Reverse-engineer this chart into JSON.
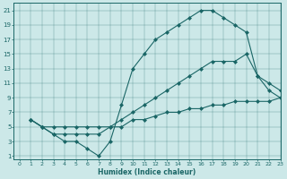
{
  "xlabel": "Humidex (Indice chaleur)",
  "bg_color": "#cce8e8",
  "line_color": "#1a6666",
  "xlim": [
    -0.5,
    23
  ],
  "ylim": [
    0.5,
    22
  ],
  "xticks": [
    0,
    1,
    2,
    3,
    4,
    5,
    6,
    7,
    8,
    9,
    10,
    11,
    12,
    13,
    14,
    15,
    16,
    17,
    18,
    19,
    20,
    21,
    22,
    23
  ],
  "yticks": [
    1,
    3,
    5,
    7,
    9,
    11,
    13,
    15,
    17,
    19,
    21
  ],
  "line1_x": [
    1,
    2,
    3,
    4,
    5,
    6,
    7,
    8,
    9,
    10,
    11,
    12,
    13,
    14,
    15,
    16,
    17,
    18,
    19,
    20,
    21,
    22,
    23
  ],
  "line1_y": [
    6,
    5,
    4,
    3,
    3,
    2,
    1,
    3,
    8,
    13,
    15,
    17,
    18,
    19,
    20,
    21,
    21,
    20,
    19,
    18,
    12,
    10,
    9
  ],
  "line2_x": [
    1,
    2,
    3,
    4,
    5,
    6,
    7,
    8,
    9,
    10,
    11,
    12,
    13,
    14,
    15,
    16,
    17,
    18,
    19,
    20,
    21,
    22,
    23
  ],
  "line2_y": [
    6,
    5,
    4,
    4,
    4,
    4,
    4,
    5,
    6,
    7,
    8,
    9,
    10,
    11,
    12,
    13,
    14,
    14,
    14,
    15,
    12,
    11,
    10
  ],
  "line3_x": [
    1,
    2,
    3,
    4,
    5,
    6,
    7,
    8,
    9,
    10,
    11,
    12,
    13,
    14,
    15,
    16,
    17,
    18,
    19,
    20,
    21,
    22,
    23
  ],
  "line3_y": [
    6,
    5,
    5,
    5,
    5,
    5,
    5,
    5,
    5,
    6,
    6,
    6.5,
    7,
    7,
    7.5,
    7.5,
    8,
    8,
    8.5,
    8.5,
    8.5,
    8.5,
    9
  ]
}
